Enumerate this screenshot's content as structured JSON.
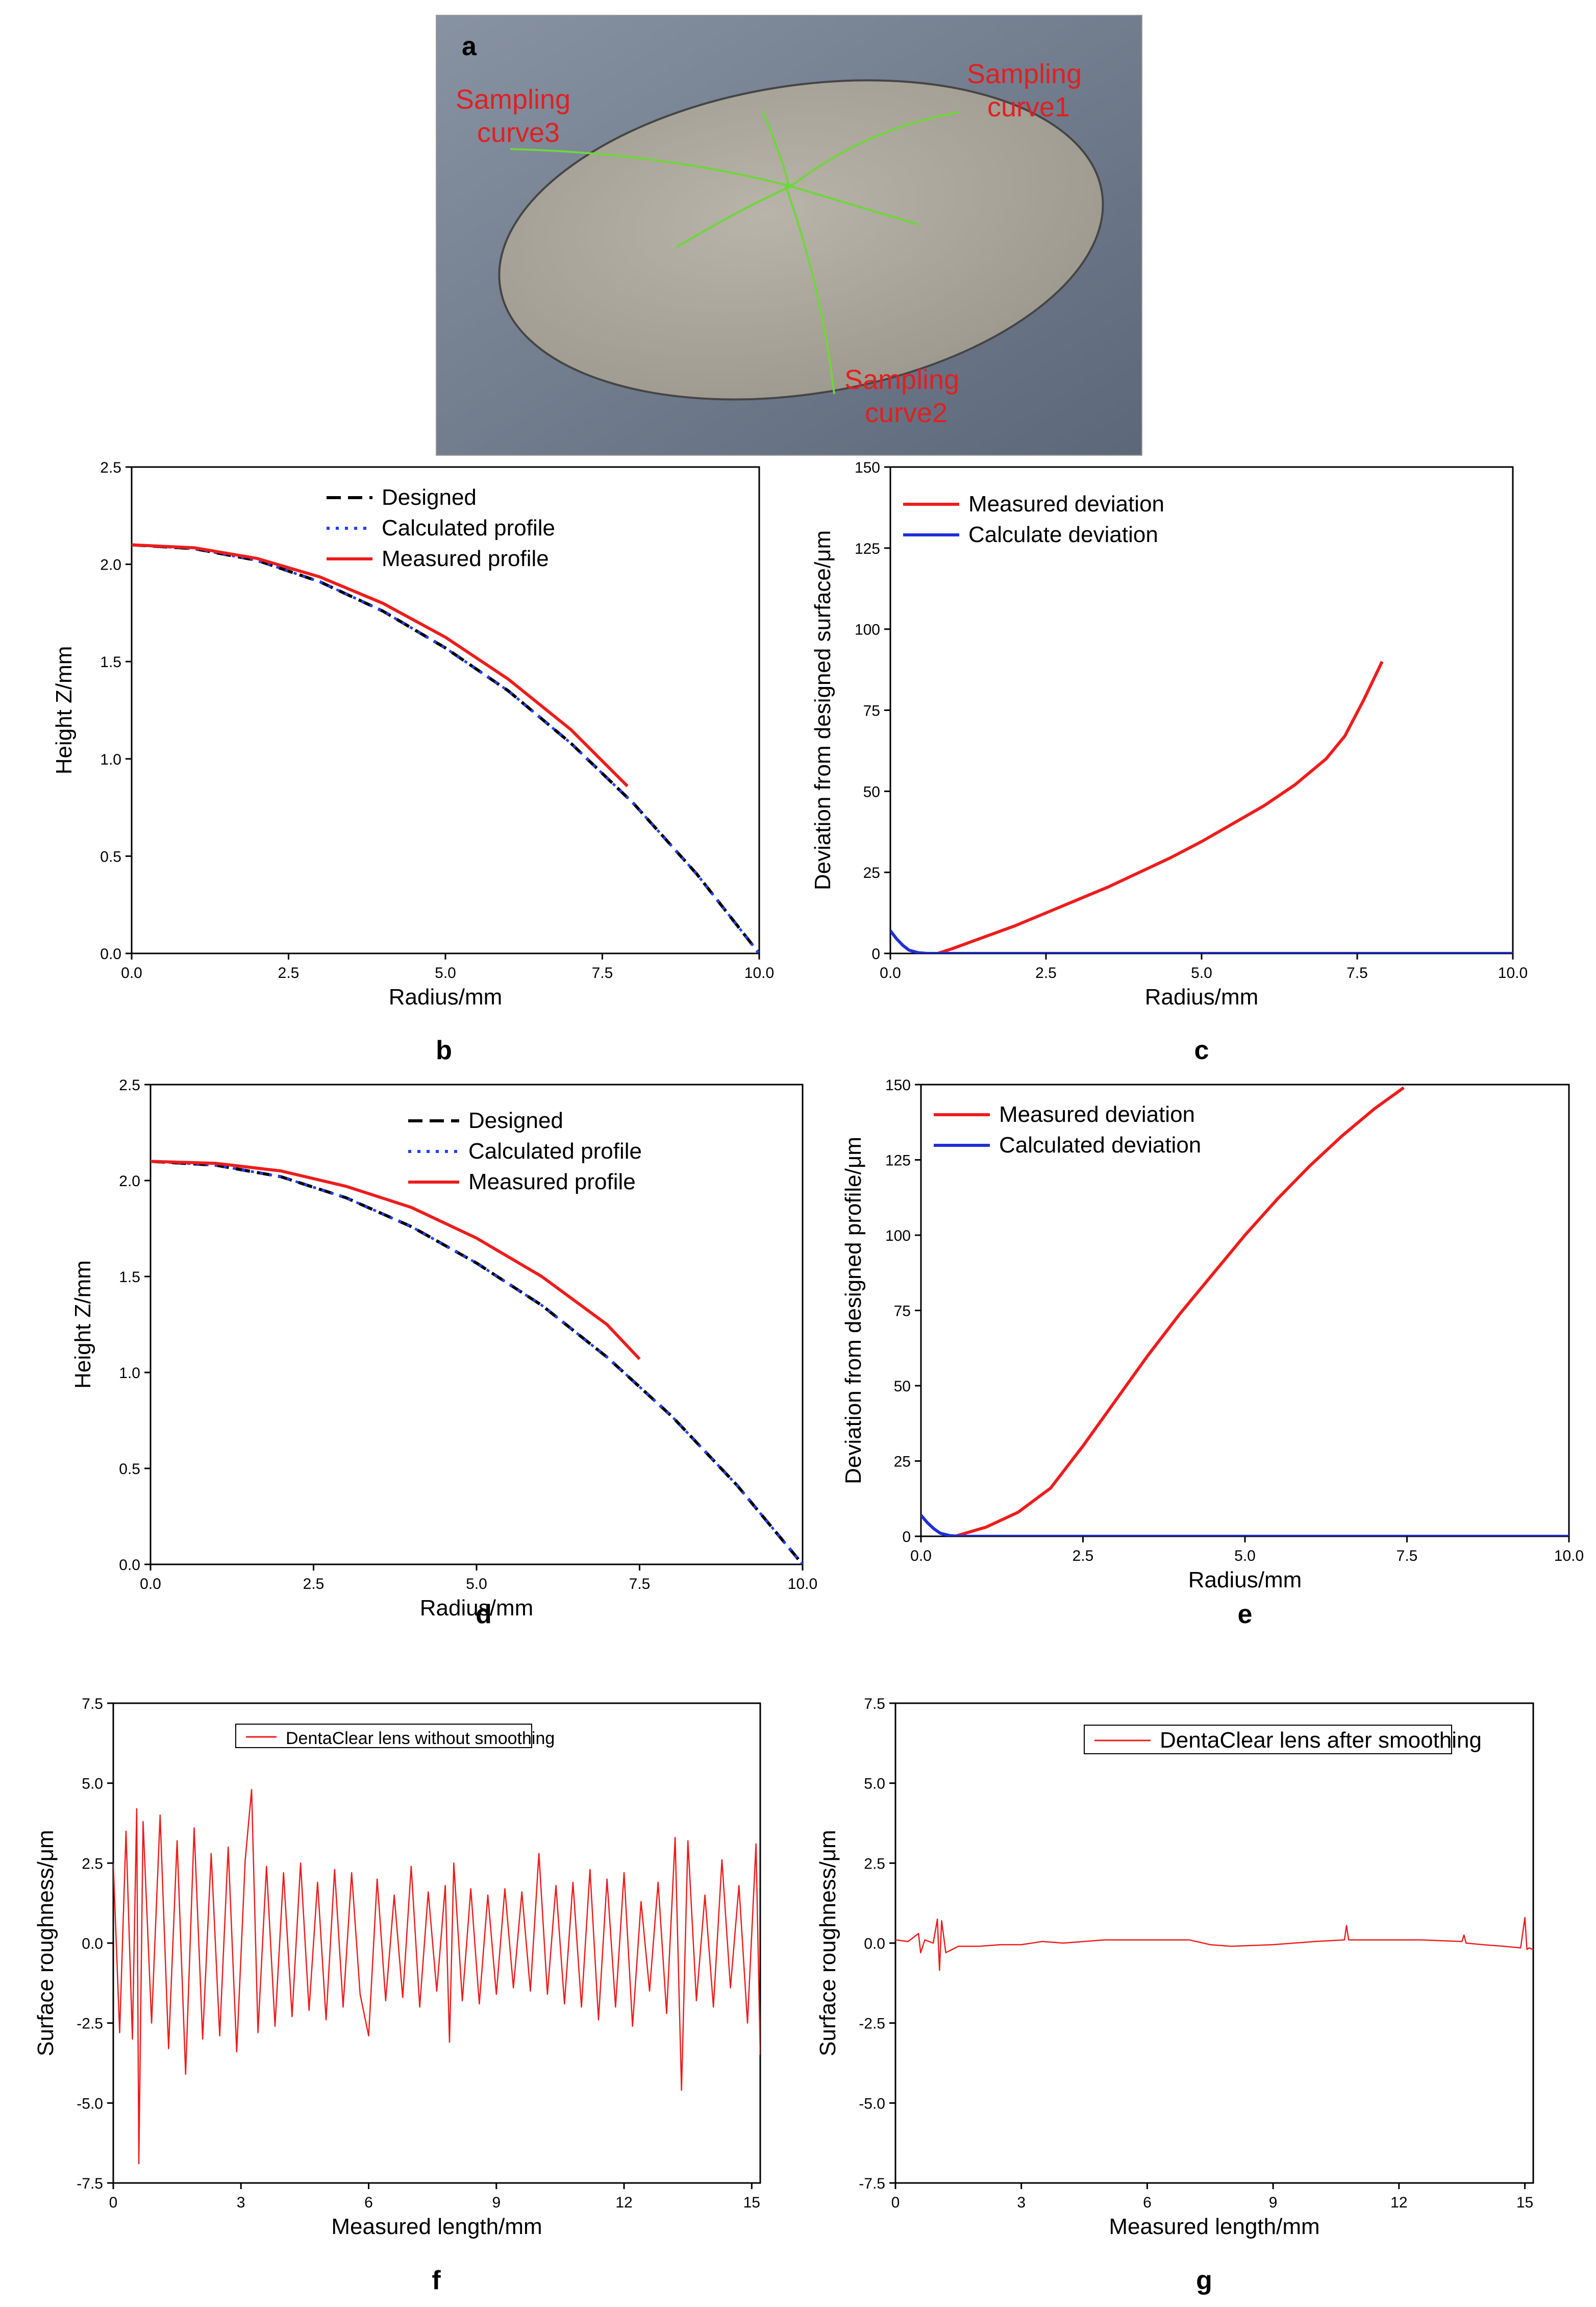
{
  "panel_a": {
    "label": "a",
    "colors": {
      "background": "#6c7889",
      "disk_fill": "#aaa69b",
      "disk_edge": "#4a4a4a",
      "curve": "#6fd63a",
      "text": "#e02020"
    },
    "annotations": [
      {
        "id": "curve1",
        "lines": [
          "Sampling",
          "curve1"
        ]
      },
      {
        "id": "curve2",
        "lines": [
          "Sampling",
          "curve2"
        ]
      },
      {
        "id": "curve3",
        "lines": [
          "Sampling",
          "curve3"
        ]
      }
    ]
  },
  "chart_data": [
    {
      "id": "b",
      "label": "b",
      "type": "line",
      "xlabel": "Radius/mm",
      "ylabel": "Height Z/mm",
      "xlim": [
        0,
        10
      ],
      "ylim": [
        0,
        2.5
      ],
      "xticks": [
        0,
        2.5,
        5,
        7.5,
        10
      ],
      "xtick_labels": [
        "0.0",
        "2.5",
        "5.0",
        "7.5",
        "10.0"
      ],
      "yticks": [
        0,
        0.5,
        1,
        1.5,
        2,
        2.5
      ],
      "ytick_labels": [
        "0.0",
        "0.5",
        "1.0",
        "1.5",
        "2.0",
        "2.5"
      ],
      "legend_position": "top",
      "series": [
        {
          "name": "Designed",
          "color": "#000000",
          "style": "dash",
          "x": [
            0,
            1,
            2,
            3,
            4,
            5,
            6,
            7,
            8,
            9,
            10
          ],
          "y": [
            2.1,
            2.08,
            2.02,
            1.91,
            1.76,
            1.57,
            1.35,
            1.08,
            0.77,
            0.41,
            0.0
          ]
        },
        {
          "name": "Calculated profile",
          "color": "#1f3fff",
          "style": "dot",
          "x": [
            0,
            1,
            2,
            3,
            4,
            5,
            6,
            7,
            8,
            9,
            10
          ],
          "y": [
            2.1,
            2.08,
            2.02,
            1.91,
            1.76,
            1.57,
            1.35,
            1.08,
            0.77,
            0.41,
            0.0
          ]
        },
        {
          "name": "Measured profile",
          "color": "#ee1c1c",
          "style": "solid",
          "x": [
            0,
            1,
            2,
            3,
            4,
            5,
            6,
            7,
            7.9
          ],
          "y": [
            2.1,
            2.085,
            2.03,
            1.935,
            1.8,
            1.625,
            1.41,
            1.15,
            0.86
          ]
        }
      ]
    },
    {
      "id": "c",
      "label": "c",
      "type": "line",
      "xlabel": "Radius/mm",
      "ylabel": "Deviation from designed surface/μm",
      "xlim": [
        0,
        10
      ],
      "ylim": [
        0,
        150
      ],
      "xticks": [
        0,
        2.5,
        5,
        7.5,
        10
      ],
      "xtick_labels": [
        "0.0",
        "2.5",
        "5.0",
        "7.5",
        "10.0"
      ],
      "yticks": [
        0,
        25,
        50,
        75,
        100,
        125,
        150
      ],
      "ytick_labels": [
        "0",
        "25",
        "50",
        "75",
        "100",
        "125",
        "150"
      ],
      "legend_position": "top-left",
      "series": [
        {
          "name": "Measured deviation",
          "color": "#ee1c1c",
          "style": "solid",
          "x": [
            0,
            0.3,
            0.6,
            1,
            1.5,
            2,
            2.5,
            3,
            3.5,
            4,
            4.5,
            5,
            5.5,
            6,
            6.5,
            7,
            7.3,
            7.6,
            7.9
          ],
          "y": [
            -1,
            -1.5,
            -1,
            1.5,
            5,
            8.5,
            12.5,
            16.5,
            20.5,
            25,
            29.5,
            34.5,
            40,
            45.5,
            52,
            60,
            67,
            78,
            90
          ]
        },
        {
          "name": "Calculate deviation",
          "color": "#1f2fd8",
          "style": "solid",
          "x": [
            0,
            0.1,
            0.2,
            0.3,
            0.45,
            0.6,
            0.8,
            1,
            2,
            4,
            6,
            8,
            10
          ],
          "y": [
            7,
            4.5,
            2.5,
            1,
            0.2,
            0,
            0,
            0,
            0,
            0,
            0,
            0,
            0
          ]
        }
      ]
    },
    {
      "id": "d",
      "label": "d",
      "type": "line",
      "xlabel": "Radius/mm",
      "ylabel": "Height Z/mm",
      "xlim": [
        0,
        10
      ],
      "ylim": [
        0,
        2.5
      ],
      "xticks": [
        0,
        2.5,
        5,
        7.5,
        10
      ],
      "xtick_labels": [
        "0.0",
        "2.5",
        "5.0",
        "7.5",
        "10.0"
      ],
      "yticks": [
        0,
        0.5,
        1,
        1.5,
        2,
        2.5
      ],
      "ytick_labels": [
        "0.0",
        "0.5",
        "1.0",
        "1.5",
        "2.0",
        "2.5"
      ],
      "legend_position": "top-right",
      "series": [
        {
          "name": "Designed",
          "color": "#000000",
          "style": "dash",
          "x": [
            0,
            1,
            2,
            3,
            4,
            5,
            6,
            7,
            8,
            9,
            10
          ],
          "y": [
            2.1,
            2.08,
            2.02,
            1.91,
            1.76,
            1.57,
            1.35,
            1.08,
            0.77,
            0.41,
            0.0
          ]
        },
        {
          "name": "Calculated profile",
          "color": "#1f3fff",
          "style": "dot",
          "x": [
            0,
            1,
            2,
            3,
            4,
            5,
            6,
            7,
            8,
            9,
            10
          ],
          "y": [
            2.1,
            2.08,
            2.02,
            1.91,
            1.76,
            1.57,
            1.35,
            1.08,
            0.77,
            0.41,
            0.0
          ]
        },
        {
          "name": "Measured profile",
          "color": "#ee1c1c",
          "style": "solid",
          "x": [
            0,
            1,
            2,
            3,
            4,
            5,
            6,
            7,
            7.5
          ],
          "y": [
            2.1,
            2.09,
            2.05,
            1.97,
            1.86,
            1.7,
            1.5,
            1.25,
            1.07
          ]
        }
      ]
    },
    {
      "id": "e",
      "label": "e",
      "type": "line",
      "xlabel": "Radius/mm",
      "ylabel": "Deviation from designed profile/μm",
      "xlim": [
        0,
        10
      ],
      "ylim": [
        0,
        150
      ],
      "xticks": [
        0,
        2.5,
        5,
        7.5,
        10
      ],
      "xtick_labels": [
        "0.0",
        "2.5",
        "5.0",
        "7.5",
        "10.0"
      ],
      "yticks": [
        0,
        25,
        50,
        75,
        100,
        125,
        150
      ],
      "ytick_labels": [
        "0",
        "25",
        "50",
        "75",
        "100",
        "125",
        "150"
      ],
      "legend_position": "top-left",
      "series": [
        {
          "name": "Measured deviation",
          "color": "#ee1c1c",
          "style": "solid",
          "x": [
            0,
            0.3,
            0.6,
            1,
            1.5,
            2,
            2.5,
            3,
            3.5,
            4,
            4.5,
            5,
            5.5,
            6,
            6.5,
            7,
            7.45
          ],
          "y": [
            -1,
            -1.5,
            0.5,
            3,
            8,
            16,
            30,
            45,
            60,
            74,
            87,
            100,
            112,
            123,
            133,
            142,
            149
          ]
        },
        {
          "name": "Calculated deviation",
          "color": "#1f2fd8",
          "style": "solid",
          "x": [
            0,
            0.1,
            0.2,
            0.3,
            0.45,
            0.6,
            0.8,
            1,
            2,
            4,
            6,
            8,
            10
          ],
          "y": [
            7,
            4.5,
            2.5,
            1,
            0.2,
            0,
            0,
            0,
            0,
            0,
            0,
            0,
            0
          ]
        }
      ]
    },
    {
      "id": "f",
      "label": "f",
      "type": "line",
      "xlabel": "Measured length/mm",
      "ylabel": "Surface roughness/μm",
      "xlim": [
        0,
        15.2
      ],
      "ylim": [
        -7.5,
        7.5
      ],
      "xticks": [
        0,
        3,
        6,
        9,
        12,
        15
      ],
      "xtick_labels": [
        "0",
        "3",
        "6",
        "9",
        "12",
        "15"
      ],
      "yticks": [
        -7.5,
        -5,
        -2.5,
        0,
        2.5,
        5,
        7.5
      ],
      "ytick_labels": [
        "-7.5",
        "-5.0",
        "-2.5",
        "0.0",
        "2.5",
        "5.0",
        "7.5"
      ],
      "legend_position": "top-center",
      "series": [
        {
          "name": "DentaClear lens without smoothing",
          "color": "#ee1c1c",
          "style": "solid",
          "x": [
            0,
            0.15,
            0.3,
            0.45,
            0.55,
            0.6,
            0.7,
            0.9,
            1.1,
            1.3,
            1.5,
            1.7,
            1.9,
            2.1,
            2.3,
            2.5,
            2.7,
            2.9,
            3.1,
            3.25,
            3.4,
            3.6,
            3.8,
            4.0,
            4.2,
            4.4,
            4.6,
            4.8,
            5.0,
            5.2,
            5.4,
            5.6,
            5.8,
            6.0,
            6.2,
            6.4,
            6.6,
            6.8,
            7.0,
            7.2,
            7.4,
            7.6,
            7.8,
            7.9,
            8.0,
            8.2,
            8.4,
            8.6,
            8.8,
            9.0,
            9.2,
            9.4,
            9.6,
            9.8,
            10.0,
            10.2,
            10.4,
            10.6,
            10.8,
            11.0,
            11.2,
            11.4,
            11.6,
            11.8,
            12.0,
            12.2,
            12.4,
            12.6,
            12.8,
            13.0,
            13.2,
            13.35,
            13.5,
            13.7,
            13.9,
            14.1,
            14.3,
            14.5,
            14.7,
            14.9,
            15.1,
            15.2
          ],
          "y": [
            2.5,
            -2.8,
            3.5,
            -3.0,
            4.2,
            -6.9,
            3.8,
            -2.5,
            4.0,
            -3.3,
            3.2,
            -4.1,
            3.6,
            -3.0,
            2.8,
            -2.9,
            3.0,
            -3.4,
            2.6,
            4.8,
            -2.8,
            2.4,
            -2.6,
            2.2,
            -2.3,
            2.5,
            -2.1,
            1.9,
            -2.4,
            2.3,
            -2.0,
            2.2,
            -1.6,
            -2.9,
            2.0,
            -1.8,
            1.5,
            -1.7,
            2.4,
            -2.0,
            1.6,
            -1.5,
            1.8,
            -3.1,
            2.5,
            -1.8,
            1.7,
            -1.9,
            1.5,
            -1.6,
            1.7,
            -1.4,
            1.6,
            -1.5,
            2.8,
            -1.6,
            1.8,
            -1.9,
            1.9,
            -2.0,
            2.3,
            -2.4,
            2.0,
            -2.0,
            2.2,
            -2.6,
            1.3,
            -1.5,
            1.9,
            -2.2,
            3.3,
            -4.6,
            3.2,
            -1.8,
            1.5,
            -2.0,
            2.6,
            -1.4,
            1.8,
            -2.5,
            3.1,
            -3.5
          ]
        }
      ]
    },
    {
      "id": "g",
      "label": "g",
      "type": "line",
      "xlabel": "Measured length/mm",
      "ylabel": "Surface roughness/μm",
      "xlim": [
        0,
        15.2
      ],
      "ylim": [
        -7.5,
        7.5
      ],
      "xticks": [
        0,
        3,
        6,
        9,
        12,
        15
      ],
      "xtick_labels": [
        "0",
        "3",
        "6",
        "9",
        "12",
        "15"
      ],
      "yticks": [
        -7.5,
        -5,
        -2.5,
        0,
        2.5,
        5,
        7.5
      ],
      "ytick_labels": [
        "-7.5",
        "-5.0",
        "-2.5",
        "0.0",
        "2.5",
        "5.0",
        "7.5"
      ],
      "legend_position": "top-center",
      "series": [
        {
          "name": "DentaClear lens after smoothing",
          "color": "#ee1c1c",
          "style": "solid",
          "x": [
            0,
            0.3,
            0.55,
            0.6,
            0.7,
            0.9,
            1.0,
            1.05,
            1.1,
            1.2,
            1.35,
            1.5,
            2.0,
            2.5,
            3.0,
            3.5,
            4.0,
            5.0,
            6.0,
            7.0,
            7.5,
            8.0,
            9.0,
            10.0,
            10.7,
            10.75,
            10.8,
            11.5,
            12.5,
            13.5,
            13.55,
            13.6,
            14.0,
            14.5,
            14.9,
            15.0,
            15.05,
            15.1,
            15.2
          ],
          "y": [
            0.1,
            0.05,
            0.3,
            -0.3,
            0.1,
            0.0,
            0.75,
            -0.85,
            0.7,
            -0.3,
            -0.2,
            -0.1,
            -0.1,
            -0.05,
            -0.05,
            0.05,
            0.0,
            0.1,
            0.1,
            0.1,
            -0.05,
            -0.1,
            -0.05,
            0.05,
            0.1,
            0.55,
            0.1,
            0.1,
            0.1,
            0.05,
            0.25,
            0.0,
            -0.05,
            -0.1,
            -0.15,
            0.8,
            -0.2,
            -0.15,
            -0.2
          ]
        }
      ]
    }
  ]
}
